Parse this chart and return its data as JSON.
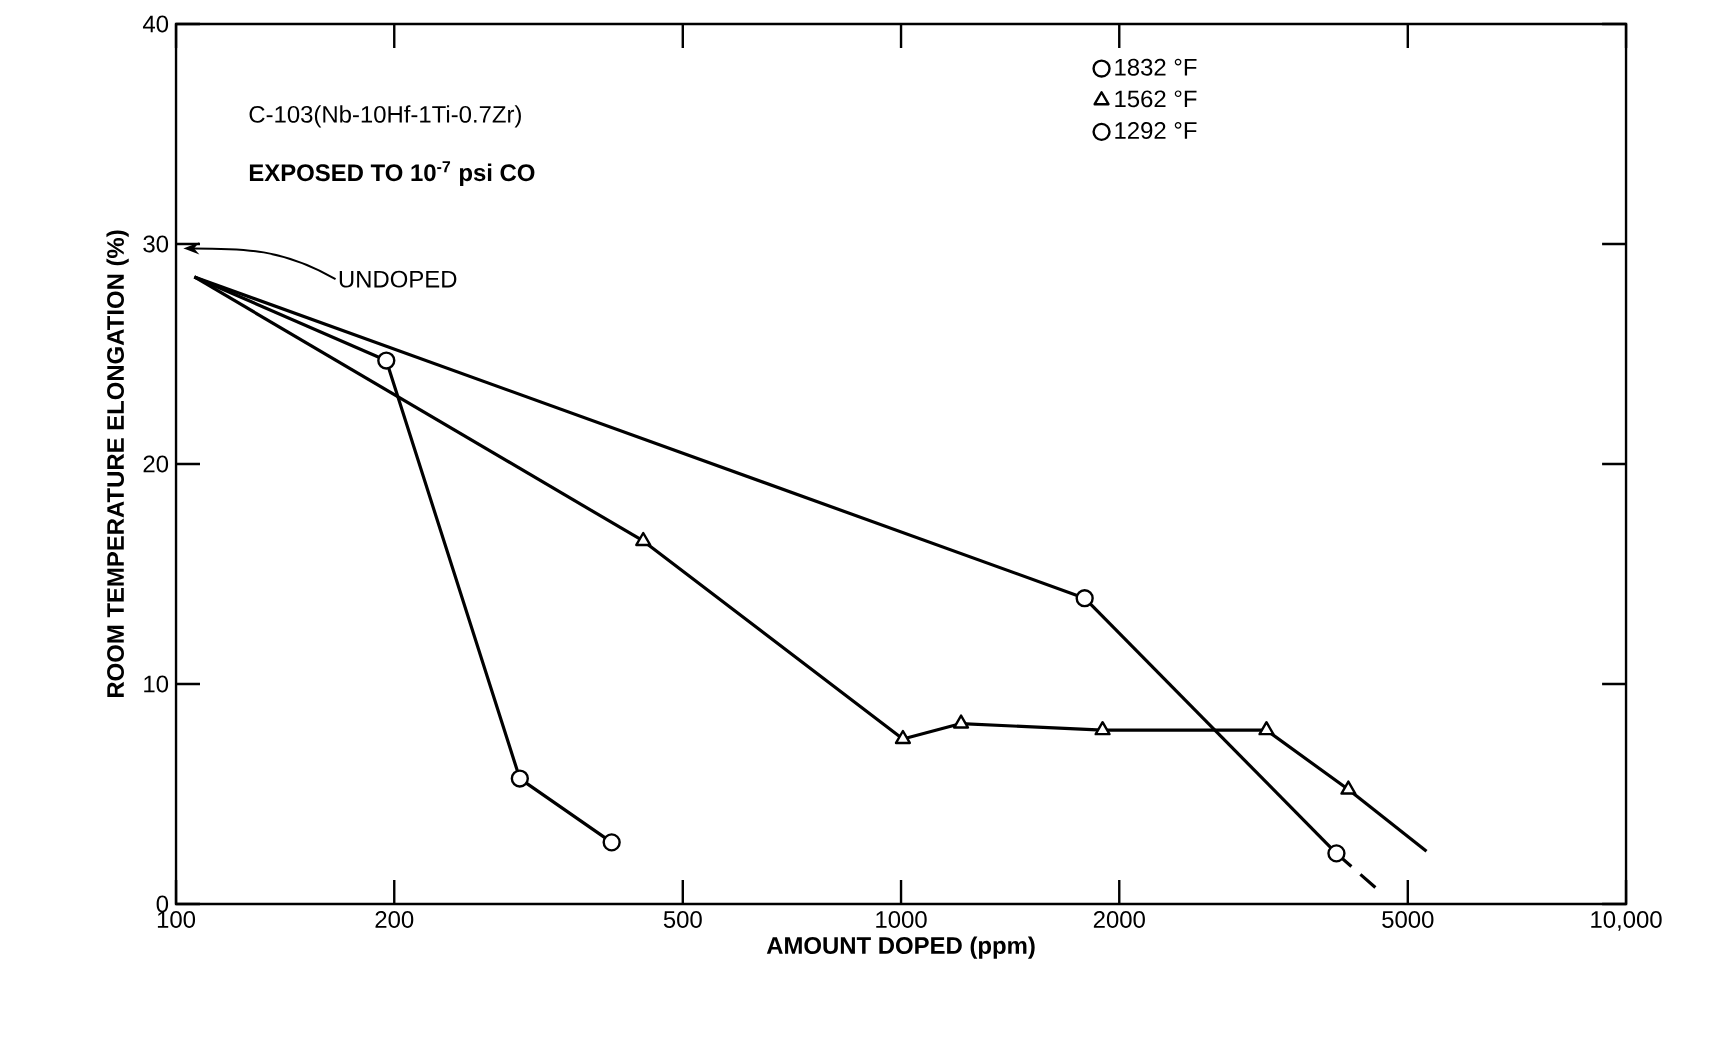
{
  "chart_data": {
    "type": "line",
    "title": "C-103(Nb-10Hf-1Ti-0.7Zr)",
    "subtitle": "EXPOSED TO 10$^{-7}$ psi CO",
    "xlabel": "AMOUNT DOPED (ppm)",
    "ylabel": "ROOM TEMPERATURE ELONGATION (%)",
    "log": "x",
    "xlim": [
      100,
      10000
    ],
    "xticks": [
      100,
      200,
      500,
      1000,
      2000,
      5000,
      {
        "value": 10000,
        "label": "10,000"
      }
    ],
    "ylim": [
      0,
      40
    ],
    "yticks": [
      0,
      10,
      20,
      30,
      40
    ],
    "grid": false,
    "legend": "top",
    "annotations": [
      "UNDOPED"
    ],
    "series": [
      {
        "name": "1832 °F",
        "color": "#000000",
        "marker": "circle",
        "line_style": "solid",
        "x": [
          1792,
          3987
        ],
        "values": [
          13.9,
          2.3
        ]
      },
      {
        "name": "1562 °F",
        "color": "#000000",
        "marker": "triangle",
        "line_style": "solid",
        "x": [
          441,
          1006,
          1210,
          1897,
          3192,
          4140
        ],
        "values": [
          16.5,
          7.5,
          8.2,
          7.9,
          7.9,
          5.2
        ]
      },
      {
        "name": "1292 °F",
        "color": "#000000",
        "marker": "circle",
        "line_style": "solid",
        "x": [
          195,
          298,
          399
        ],
        "values": [
          24.7,
          5.7,
          2.8
        ]
      },
      {
        "color": "#000000",
        "marker": "none",
        "line_style": "solid",
        "x": [
          106,
          1792
        ],
        "values": [
          28.5,
          13.9
        ]
      },
      {
        "color": "#000000",
        "marker": "none",
        "line_style": "solid",
        "x": [
          106,
          441
        ],
        "values": [
          28.5,
          16.5
        ]
      },
      {
        "color": "#000000",
        "marker": "none",
        "line_style": "solid",
        "x": [
          106,
          195
        ],
        "values": [
          28.5,
          24.7
        ]
      },
      {
        "color": "#000000",
        "marker": "none",
        "line_style": "dashed",
        "x": [
          3987,
          4528
        ],
        "values": [
          2.3,
          0.7
        ]
      },
      {
        "color": "#000000",
        "marker": "none",
        "line_style": "solid",
        "x": [
          4140,
          5306
        ],
        "values": [
          5.2,
          2.4
        ]
      }
    ]
  }
}
